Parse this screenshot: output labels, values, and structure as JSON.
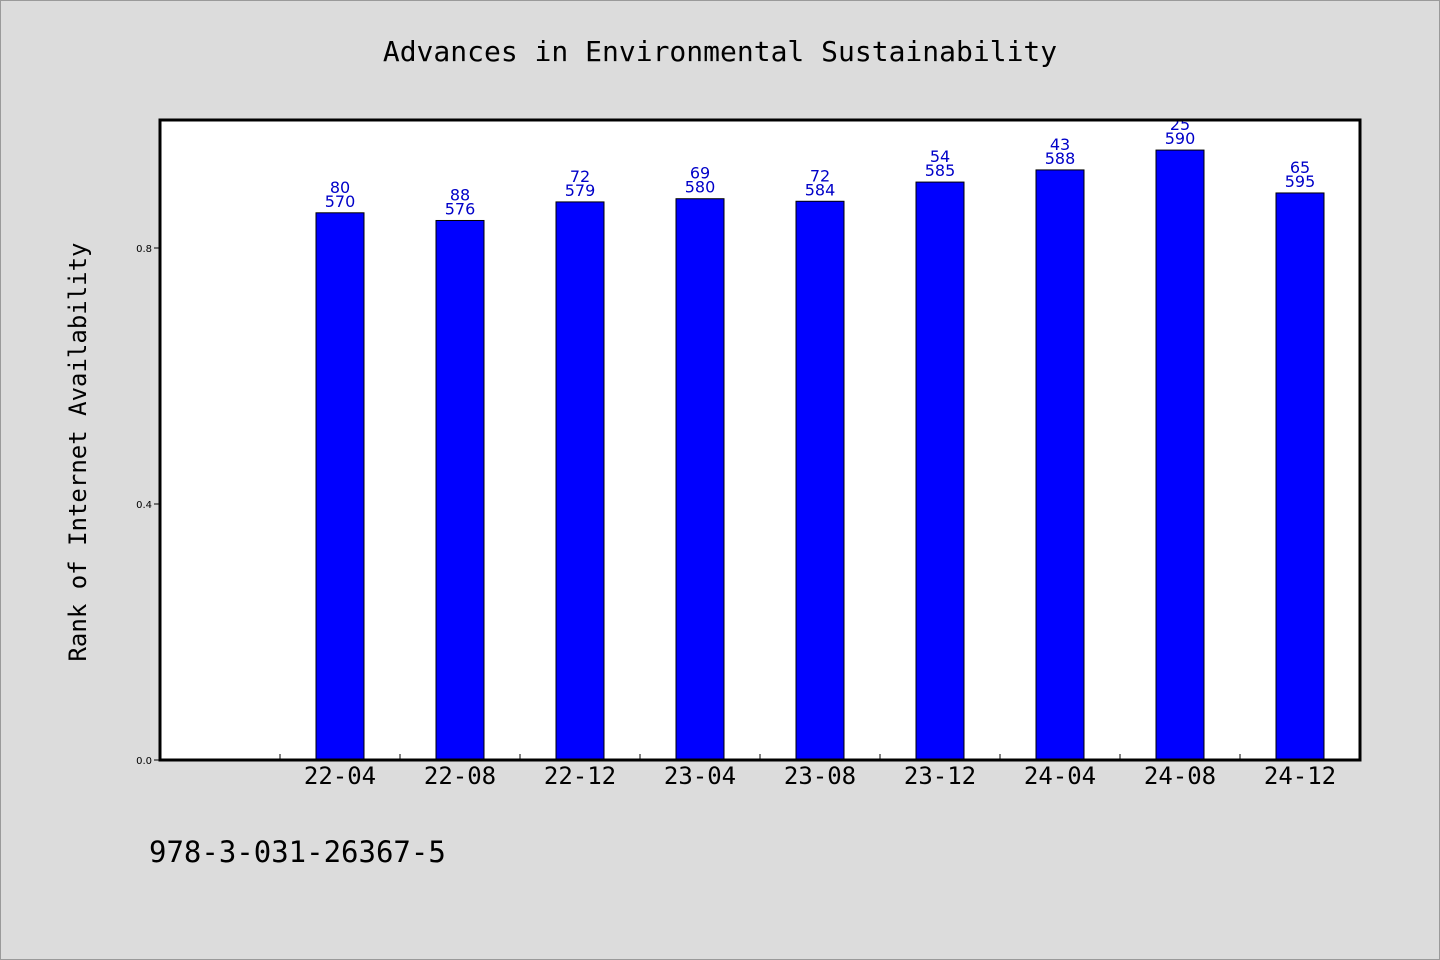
{
  "chart_data": {
    "type": "bar",
    "title": "Advances in Environmental Sustainability",
    "ylabel": "Rank of Internet Availability",
    "xlabel": "",
    "categories": [
      "22-04",
      "22-08",
      "22-12",
      "23-04",
      "23-08",
      "23-12",
      "24-04",
      "24-08",
      "24-12"
    ],
    "values": [
      0.855,
      0.843,
      0.872,
      0.877,
      0.873,
      0.903,
      0.922,
      0.953,
      0.886
    ],
    "label_top": [
      "80",
      "88",
      "72",
      "69",
      "72",
      "54",
      "43",
      "25",
      "65"
    ],
    "label_bottom": [
      "570",
      "576",
      "579",
      "580",
      "584",
      "585",
      "588",
      "590",
      "595"
    ],
    "yticks": [
      0.0,
      0.4,
      0.8
    ],
    "ytick_labels": [
      "0.0",
      "0.4",
      "0.8"
    ],
    "ylim": [
      0.0,
      1.0
    ],
    "grid": false,
    "bar_color": "#0000ff",
    "label_color": "#0000c8"
  },
  "footer": {
    "isbn": "978-3-031-26367-5"
  }
}
